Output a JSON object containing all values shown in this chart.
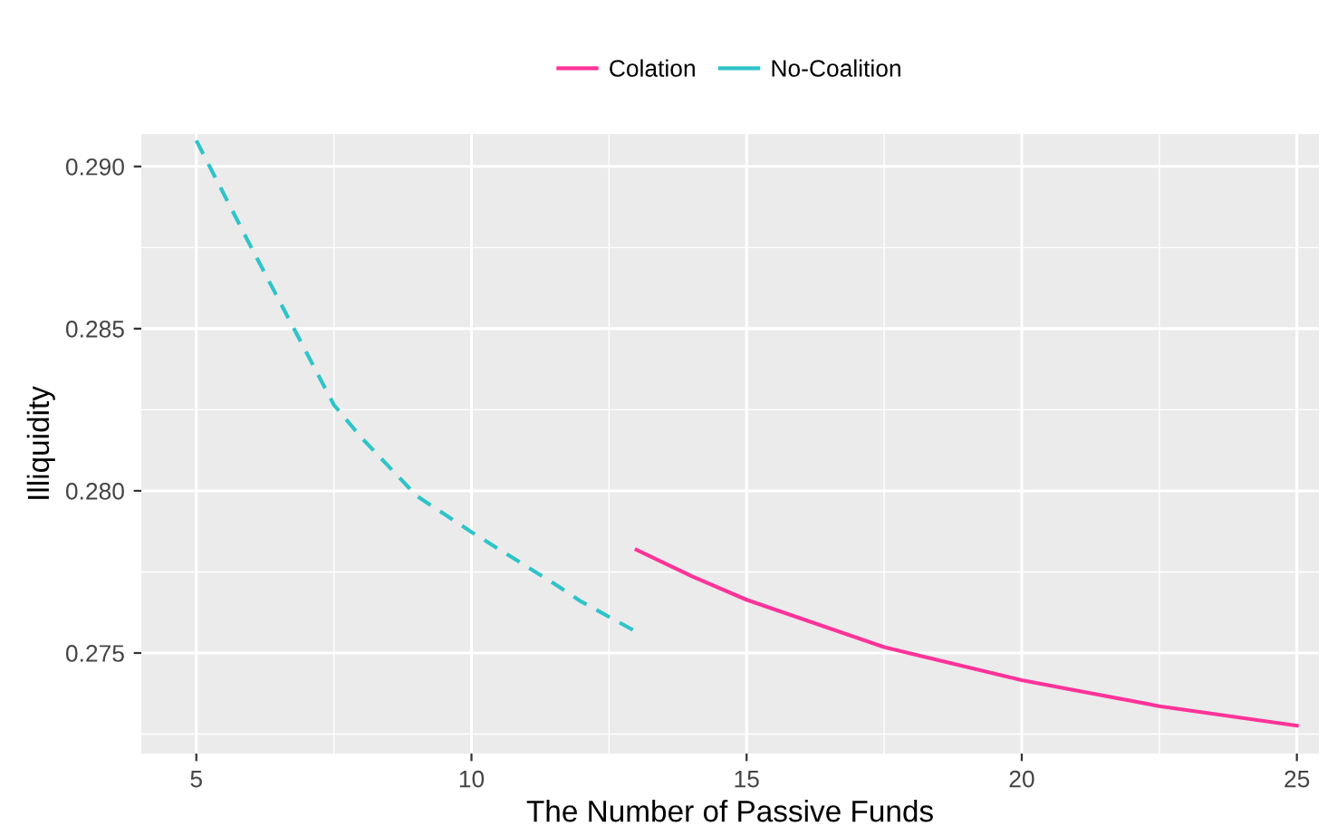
{
  "chart_data": {
    "type": "line",
    "xlabel": "The Number of Passive Funds",
    "ylabel": "Illiquidity",
    "series": [
      {
        "name": "Colation",
        "color": "#ff3399",
        "line_style": "solid",
        "x": [
          13,
          14,
          15,
          17.5,
          20,
          22.5,
          25
        ],
        "values": [
          0.27818,
          0.27737,
          0.27664,
          0.27518,
          0.27416,
          0.27336,
          0.27276
        ]
      },
      {
        "name": "No-Coalition",
        "color": "#2ec4c9",
        "line_style": "dashed",
        "x": [
          5,
          6,
          7.5,
          8,
          9,
          10,
          11.5,
          12,
          13
        ],
        "values": [
          0.2908,
          0.2875,
          0.28265,
          0.28164,
          0.27985,
          0.27873,
          0.27714,
          0.27658,
          0.27565
        ]
      }
    ],
    "xlim": [
      4,
      25.4
    ],
    "ylim": [
      0.2719,
      0.291
    ],
    "xticks": [
      5,
      10,
      15,
      20,
      25
    ],
    "yticks": [
      {
        "value": 0.275,
        "label": "0.275"
      },
      {
        "value": 0.28,
        "label": "0.280"
      },
      {
        "value": 0.285,
        "label": "0.285"
      },
      {
        "value": 0.29,
        "label": "0.290"
      }
    ],
    "grid": true,
    "legend": "top",
    "marker": "none"
  }
}
